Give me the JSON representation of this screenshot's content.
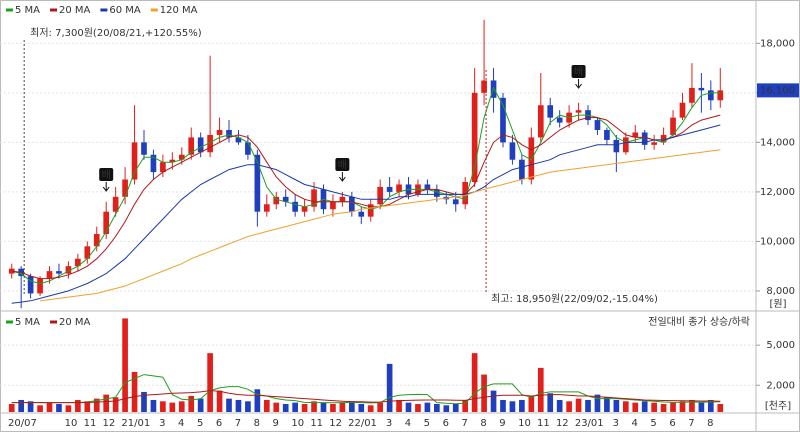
{
  "chart_data": [
    {
      "type": "candlestick",
      "open": [
        8700,
        8900,
        8600,
        7900,
        8500,
        8800,
        8700,
        9000,
        9300,
        9800,
        10300,
        11200,
        11800,
        12500,
        14000,
        13500,
        12800,
        13200,
        13300,
        13500,
        14200,
        13600,
        14300,
        14500,
        14200,
        14000,
        13500,
        11200,
        11500,
        11800,
        11600,
        11200,
        11400,
        12100,
        11300,
        11600,
        11800,
        11200,
        11000,
        11500,
        12200,
        12000,
        12300,
        11900,
        12300,
        12100,
        11800,
        11700,
        11500,
        12400,
        16000,
        16500,
        15800,
        14000,
        13300,
        12500,
        14200,
        15500,
        15000,
        14800,
        15200,
        15300,
        14900,
        14500,
        14100,
        13600,
        14200,
        14400,
        13900,
        14000,
        14300,
        15000,
        15600,
        16200,
        16100,
        15700
      ],
      "high": [
        9100,
        9000,
        8700,
        8600,
        9000,
        9100,
        9200,
        9500,
        10000,
        10600,
        11600,
        12200,
        13000,
        15500,
        14500,
        13700,
        13500,
        13600,
        13800,
        14600,
        14400,
        17500,
        15000,
        14900,
        14500,
        14300,
        13700,
        11900,
        12000,
        12100,
        11900,
        11700,
        12400,
        12300,
        11900,
        12000,
        12000,
        11400,
        11700,
        12500,
        12600,
        12500,
        12600,
        12500,
        12500,
        12300,
        12000,
        12000,
        12600,
        17000,
        18950,
        17000,
        16000,
        14300,
        13500,
        14600,
        16800,
        15800,
        15300,
        15500,
        15600,
        15500,
        15000,
        14600,
        14300,
        14400,
        14700,
        14500,
        14300,
        14600,
        15300,
        16000,
        17200,
        16800,
        16500,
        17000
      ],
      "low": [
        8500,
        7300,
        7700,
        7800,
        8300,
        8500,
        8500,
        8800,
        9100,
        9600,
        10100,
        11000,
        11500,
        12300,
        13300,
        12500,
        12600,
        12900,
        13100,
        13300,
        13400,
        13400,
        14000,
        14000,
        13900,
        13300,
        10600,
        11000,
        11300,
        11400,
        11000,
        11000,
        11200,
        11100,
        11000,
        11400,
        11000,
        10700,
        10800,
        11300,
        11800,
        11800,
        11700,
        11800,
        11900,
        11600,
        11500,
        11200,
        11300,
        12200,
        15500,
        15200,
        13800,
        13100,
        12300,
        12300,
        14000,
        14700,
        14600,
        14600,
        14900,
        14700,
        14300,
        13900,
        12800,
        13500,
        14000,
        13700,
        13700,
        13900,
        14200,
        14900,
        15400,
        15200,
        15300,
        15400
      ],
      "close": [
        8900,
        8600,
        7900,
        8500,
        8800,
        8700,
        9000,
        9300,
        9800,
        10300,
        11200,
        11800,
        12500,
        14000,
        13500,
        12800,
        13200,
        13300,
        13500,
        14200,
        13600,
        14300,
        14500,
        14200,
        14000,
        13500,
        11200,
        11500,
        11800,
        11600,
        11200,
        11400,
        12100,
        11300,
        11600,
        11800,
        11200,
        11000,
        11500,
        12200,
        12000,
        12300,
        11900,
        12300,
        12100,
        11800,
        11700,
        11500,
        12400,
        16000,
        16500,
        15800,
        14000,
        13300,
        12500,
        14200,
        15500,
        15000,
        14800,
        15200,
        15300,
        14900,
        14500,
        14100,
        13600,
        14200,
        14400,
        13900,
        14000,
        14300,
        15000,
        15600,
        16200,
        16100,
        15700,
        16100
      ],
      "up_color": "#e0201b",
      "down_color": "#1f3fbf",
      "series": [
        {
          "name": "5 MA",
          "color": "#1ea01e",
          "values": [
            8800,
            8700,
            8400,
            8300,
            8400,
            8600,
            8800,
            9000,
            9300,
            9800,
            10400,
            11100,
            11800,
            12800,
            13400,
            13400,
            13200,
            13200,
            13300,
            13600,
            13800,
            14000,
            14200,
            14300,
            14200,
            14000,
            13200,
            12200,
            11700,
            11600,
            11500,
            11400,
            11500,
            11700,
            11600,
            11600,
            11600,
            11400,
            11300,
            11400,
            11800,
            12000,
            12100,
            12100,
            12100,
            12000,
            11900,
            11800,
            11700,
            13000,
            15000,
            16200,
            15500,
            14500,
            13500,
            13300,
            14000,
            14800,
            15100,
            15000,
            15100,
            15100,
            15000,
            14700,
            14200,
            14000,
            14100,
            14200,
            14100,
            14000,
            14300,
            14800,
            15400,
            15900,
            16000,
            16000
          ]
        },
        {
          "name": "20 MA",
          "color": "#b01818",
          "values": [
            8800,
            8750,
            8600,
            8500,
            8500,
            8550,
            8650,
            8800,
            9000,
            9300,
            9700,
            10200,
            10800,
            11500,
            12100,
            12500,
            12800,
            13000,
            13200,
            13400,
            13600,
            13800,
            14000,
            14200,
            14300,
            14200,
            13800,
            13200,
            12600,
            12200,
            11900,
            11700,
            11600,
            11600,
            11600,
            11600,
            11600,
            11500,
            11400,
            11400,
            11500,
            11700,
            11900,
            12000,
            12100,
            12100,
            12000,
            11900,
            11900,
            12300,
            13200,
            14000,
            14300,
            14200,
            13900,
            13700,
            13900,
            14200,
            14500,
            14700,
            14900,
            15000,
            15000,
            14900,
            14600,
            14300,
            14200,
            14200,
            14100,
            14100,
            14200,
            14400,
            14700,
            14900,
            15000,
            15100
          ]
        },
        {
          "name": "60 MA",
          "color": "#1a3aa8",
          "values": [
            7500,
            7550,
            7600,
            7700,
            7800,
            7900,
            8000,
            8150,
            8300,
            8500,
            8700,
            9000,
            9300,
            9700,
            10100,
            10500,
            10900,
            11300,
            11700,
            12000,
            12300,
            12500,
            12700,
            12900,
            13000,
            13100,
            13100,
            13000,
            12900,
            12700,
            12500,
            12300,
            12200,
            12100,
            12000,
            11900,
            11800,
            11700,
            11700,
            11700,
            11700,
            11800,
            11800,
            11900,
            11900,
            11900,
            11900,
            11900,
            11900,
            12000,
            12200,
            12500,
            12700,
            12900,
            13000,
            13100,
            13200,
            13300,
            13500,
            13600,
            13700,
            13800,
            13900,
            13900,
            13900,
            14000,
            14000,
            14000,
            14100,
            14100,
            14200,
            14300,
            14400,
            14500,
            14600,
            14700
          ]
        },
        {
          "name": "120 MA",
          "color": "#f0a030",
          "values": [
            null,
            null,
            null,
            7600,
            7650,
            7700,
            7750,
            7800,
            7850,
            7900,
            8000,
            8100,
            8200,
            8350,
            8500,
            8650,
            8800,
            8950,
            9100,
            9300,
            9450,
            9600,
            9750,
            9900,
            10050,
            10200,
            10300,
            10400,
            10500,
            10600,
            10700,
            10800,
            10900,
            11000,
            11100,
            11150,
            11200,
            11300,
            11350,
            11400,
            11450,
            11500,
            11550,
            11600,
            11650,
            11700,
            11750,
            11800,
            11850,
            12000,
            12100,
            12200,
            12300,
            12400,
            12500,
            12600,
            12700,
            12800,
            12850,
            12900,
            12950,
            13000,
            13050,
            13100,
            13150,
            13200,
            13250,
            13300,
            13350,
            13400,
            13450,
            13500,
            13550,
            13600,
            13650,
            13700
          ]
        }
      ],
      "ylim": [
        7230,
        19750
      ],
      "yticks": [
        {
          "value": 8000,
          "label": "8,000"
        },
        {
          "value": 10000,
          "label": "10,000"
        },
        {
          "value": 12000,
          "label": "12,000"
        },
        {
          "value": 14000,
          "label": "14,000"
        },
        {
          "value": 16000,
          "label": "16,000"
        },
        {
          "value": 18000,
          "label": "18,000"
        }
      ],
      "grid": true,
      "y_unit": "[원]",
      "current_price": {
        "value": 16100,
        "label": "16,100"
      },
      "low_annotation": "최저: 7,300원(20/08/21,+120.55%)",
      "high_annotation": "최고: 18,950원(22/09/02,-15.04%)",
      "marker_label": "배"
    },
    {
      "type": "bar",
      "categories": [
        "20/07",
        null,
        null,
        null,
        null,
        null,
        "10",
        null,
        "11",
        null,
        "12",
        null,
        "21/01",
        null,
        null,
        null,
        "3",
        null,
        "4",
        null,
        "5",
        null,
        "6",
        null,
        "7",
        null,
        "8",
        null,
        "9",
        null,
        "10",
        null,
        "11",
        null,
        "12",
        null,
        "22/01",
        null,
        null,
        null,
        "3",
        null,
        "4",
        null,
        "5",
        null,
        "6",
        null,
        "7",
        null,
        "8",
        null,
        "9",
        null,
        "10",
        null,
        "11",
        null,
        "12",
        null,
        "23/01",
        null,
        null,
        null,
        "3",
        null,
        "4",
        null,
        "5",
        null,
        "6",
        null,
        "7",
        null,
        "8",
        null
      ],
      "values": [
        600,
        900,
        800,
        500,
        700,
        600,
        500,
        900,
        800,
        1000,
        1300,
        1100,
        7000,
        3000,
        1500,
        900,
        800,
        700,
        800,
        1200,
        1000,
        4400,
        1600,
        1000,
        900,
        800,
        1700,
        900,
        700,
        600,
        700,
        600,
        800,
        700,
        600,
        700,
        800,
        600,
        500,
        700,
        3600,
        900,
        700,
        600,
        700,
        600,
        500,
        600,
        900,
        4400,
        2800,
        1600,
        900,
        800,
        900,
        1200,
        3300,
        1400,
        900,
        800,
        1000,
        900,
        1300,
        1100,
        900,
        800,
        700,
        800,
        700,
        600,
        700,
        800,
        900,
        700,
        900,
        600
      ],
      "series": [
        {
          "name": "5 MA",
          "color": "#1ea01e",
          "values": [
            700,
            700,
            720,
            700,
            690,
            700,
            700,
            700,
            750,
            850,
            980,
            1100,
            2200,
            2500,
            2800,
            2700,
            2600,
            1300,
            950,
            900,
            1000,
            1600,
            1800,
            1900,
            1900,
            1700,
            1300,
            1200,
            1000,
            900,
            850,
            720,
            700,
            700,
            690,
            700,
            720,
            700,
            680,
            700,
            1100,
            1250,
            1300,
            1320,
            1300,
            700,
            650,
            620,
            660,
            1400,
            1900,
            2100,
            2100,
            2100,
            1300,
            1100,
            1400,
            1500,
            1500,
            1500,
            1500,
            1200,
            1000,
            1000,
            1000,
            950,
            900,
            850,
            800,
            750,
            720,
            720,
            750,
            740,
            750,
            760
          ]
        },
        {
          "name": "20 MA",
          "color": "#b01818",
          "values": [
            700,
            700,
            700,
            700,
            700,
            700,
            700,
            700,
            720,
            740,
            780,
            820,
            1000,
            1150,
            1250,
            1300,
            1350,
            1400,
            1420,
            1450,
            1500,
            1600,
            1550,
            1400,
            1300,
            1250,
            1250,
            1200,
            1150,
            1100,
            1050,
            1000,
            950,
            900,
            850,
            800,
            780,
            760,
            740,
            750,
            800,
            850,
            870,
            890,
            900,
            900,
            900,
            880,
            870,
            1000,
            1100,
            1200,
            1250,
            1250,
            1250,
            1200,
            1250,
            1300,
            1300,
            1250,
            1200,
            1200,
            1150,
            1100,
            1050,
            1000,
            950,
            900,
            880,
            860,
            850,
            840,
            830,
            820,
            820,
            810
          ]
        }
      ],
      "ylim": [
        0,
        7480
      ],
      "yticks": [
        {
          "value": 2000,
          "label": "2,000"
        },
        {
          "value": 5000,
          "label": "5,000"
        }
      ],
      "y_unit": "[천주]",
      "note": "전일대비 종가 상승/하락"
    }
  ]
}
